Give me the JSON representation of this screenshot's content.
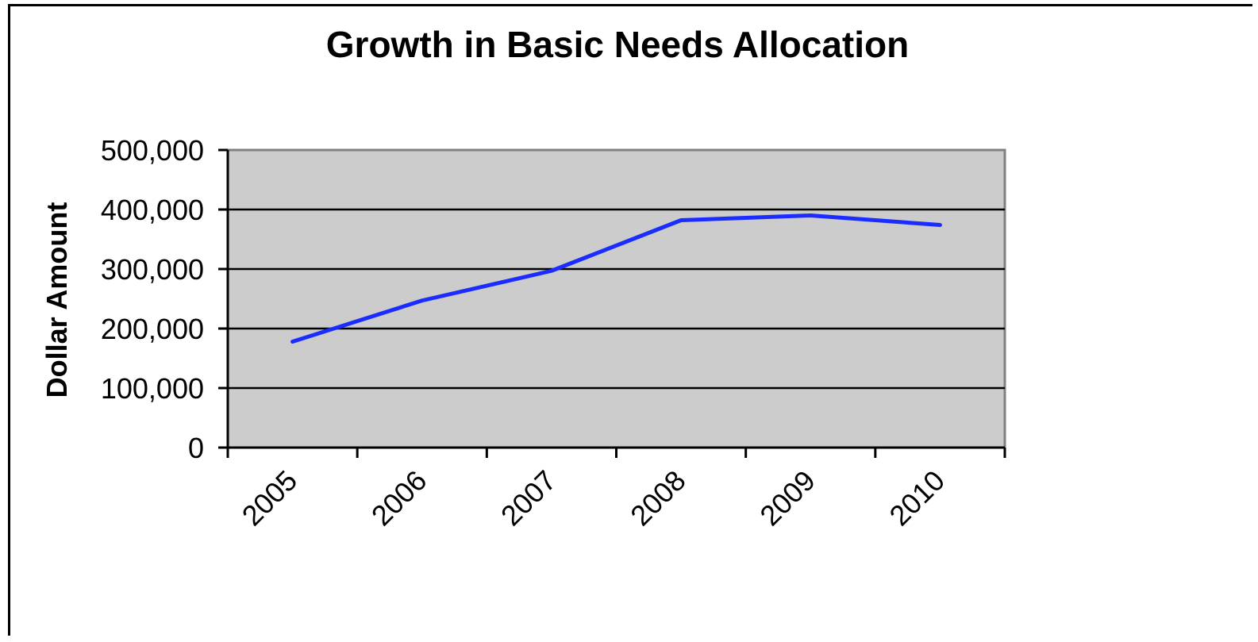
{
  "chart_data": {
    "type": "line",
    "title": "Growth in Basic Needs Allocation",
    "xlabel": "",
    "ylabel": "Dollar Amount",
    "categories": [
      "2005",
      "2006",
      "2007",
      "2008",
      "2009",
      "2010"
    ],
    "series": [
      {
        "values": [
          178000,
          247000,
          297000,
          382000,
          390000,
          374000
        ],
        "color": "#1a2cff"
      }
    ],
    "ylim": [
      0,
      500000
    ],
    "yticks": [
      0,
      100000,
      200000,
      300000,
      400000,
      500000
    ],
    "ytick_labels": [
      "0",
      "100,000",
      "200,000",
      "300,000",
      "400,000",
      "500,000"
    ],
    "grid": true,
    "legend": "none",
    "plot_background": "#cccccc",
    "gridline_color": "#000000"
  }
}
